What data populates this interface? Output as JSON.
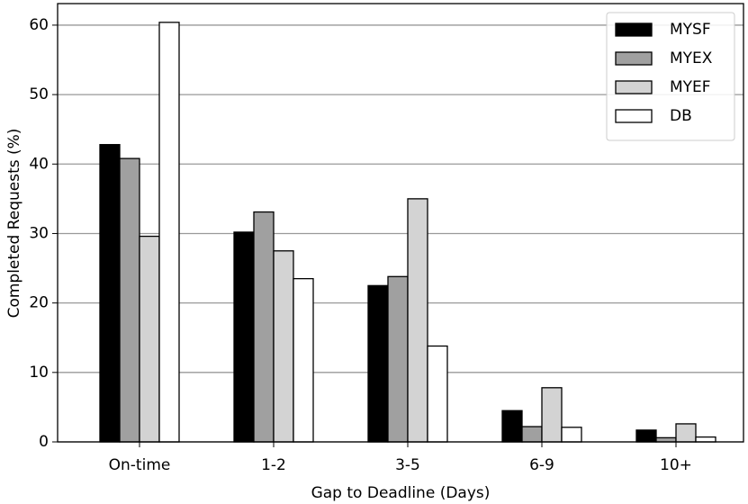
{
  "chart_data": {
    "type": "bar",
    "x_label": "Gap to Deadline (Days)",
    "y_label": "Completed Requests (%)",
    "categories": [
      "On-time",
      "1-2",
      "3-5",
      "6-9",
      "10+"
    ],
    "series": [
      {
        "name": "MYSF",
        "color": "#000000",
        "values": [
          42.8,
          30.2,
          22.5,
          4.5,
          1.7
        ]
      },
      {
        "name": "MYEX",
        "color": "#a0a0a0",
        "values": [
          40.8,
          33.1,
          23.8,
          2.2,
          0.6
        ]
      },
      {
        "name": "MYEF",
        "color": "#d3d3d3",
        "values": [
          29.6,
          27.5,
          35.0,
          7.8,
          2.6
        ]
      },
      {
        "name": "DB",
        "color": "#ffffff",
        "values": [
          60.4,
          23.5,
          13.8,
          2.1,
          0.7
        ]
      }
    ],
    "ylim": [
      0,
      63.1
    ],
    "yticks": [
      0,
      10,
      20,
      30,
      40,
      50,
      60
    ],
    "grid": true,
    "legend": "upper-right"
  }
}
